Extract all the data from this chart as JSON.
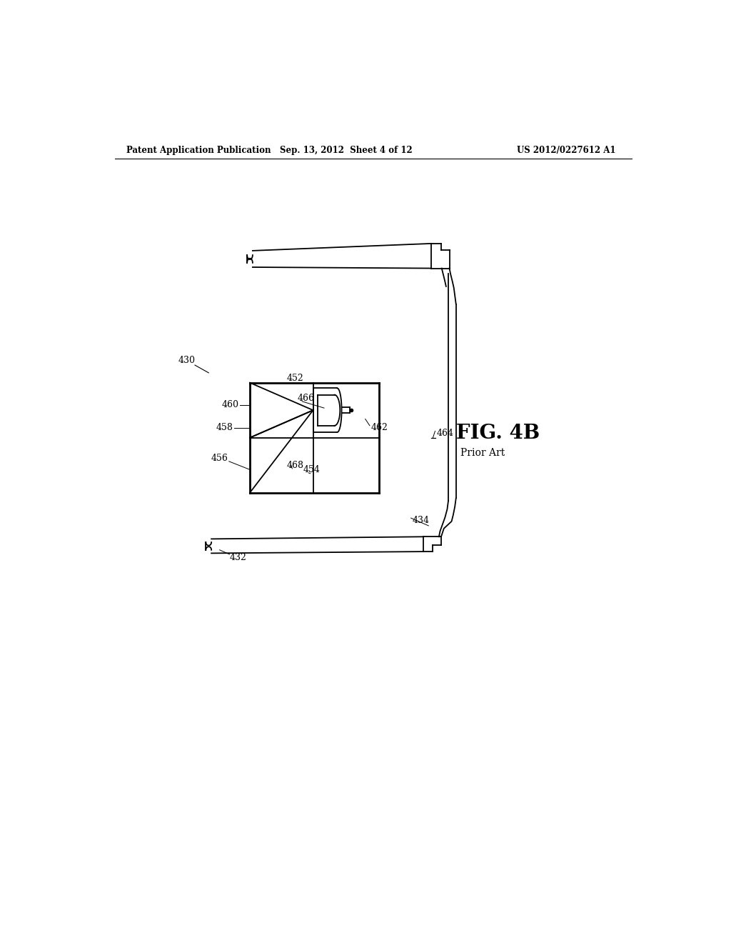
{
  "background_color": "#ffffff",
  "header_left": "Patent Application Publication",
  "header_center": "Sep. 13, 2012  Sheet 4 of 12",
  "header_right": "US 2012/0227612 A1",
  "figure_label": "FIG. 4B",
  "prior_art_label": "Prior Art",
  "lw": 1.3,
  "lw_thick": 2.0,
  "lw_thin": 0.8
}
